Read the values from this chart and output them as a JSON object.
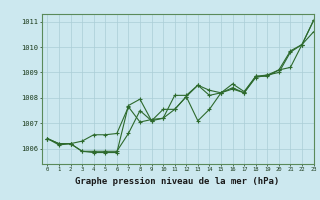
{
  "xlabel": "Graphe pression niveau de la mer (hPa)",
  "xlim": [
    -0.5,
    23
  ],
  "ylim": [
    1005.4,
    1011.3
  ],
  "yticks": [
    1006,
    1007,
    1008,
    1009,
    1010,
    1011
  ],
  "xticks": [
    0,
    1,
    2,
    3,
    4,
    5,
    6,
    7,
    8,
    9,
    10,
    11,
    12,
    13,
    14,
    15,
    16,
    17,
    18,
    19,
    20,
    21,
    22,
    23
  ],
  "background_color": "#cce8ef",
  "grid_color": "#aacdd6",
  "line_color": "#2d6a2d",
  "line1_x": [
    0,
    1,
    2,
    3,
    4,
    5,
    6,
    7,
    8,
    9,
    10,
    11,
    12,
    13,
    14,
    15,
    16,
    17,
    18,
    19,
    20,
    21,
    22,
    23
  ],
  "line1_y": [
    1006.4,
    1006.2,
    1006.2,
    1005.9,
    1005.9,
    1005.9,
    1005.9,
    1006.6,
    1007.5,
    1007.1,
    1007.2,
    1008.1,
    1008.1,
    1008.5,
    1008.1,
    1008.2,
    1008.4,
    1008.2,
    1008.8,
    1008.9,
    1009.0,
    1009.8,
    1010.1,
    1010.6
  ],
  "line2_x": [
    0,
    1,
    2,
    3,
    4,
    5,
    6,
    7,
    8,
    9,
    10,
    11,
    12,
    13,
    14,
    15,
    16,
    17,
    18,
    19,
    20,
    21,
    22,
    23
  ],
  "line2_y": [
    1006.4,
    1006.2,
    1006.2,
    1005.9,
    1005.85,
    1005.85,
    1005.85,
    1007.7,
    1007.95,
    1007.1,
    1007.55,
    1007.55,
    1008.05,
    1007.1,
    1007.55,
    1008.2,
    1008.35,
    1008.2,
    1008.85,
    1008.85,
    1009.1,
    1009.85,
    1010.1,
    1011.05
  ],
  "line3_x": [
    0,
    1,
    2,
    3,
    4,
    5,
    6,
    7,
    8,
    9,
    10,
    11,
    12,
    13,
    14,
    15,
    16,
    17,
    18,
    19,
    20,
    21,
    22,
    23
  ],
  "line3_y": [
    1006.4,
    1006.15,
    1006.2,
    1006.3,
    1006.55,
    1006.55,
    1006.6,
    1007.65,
    1007.05,
    1007.15,
    1007.2,
    1007.55,
    1008.05,
    1008.5,
    1008.3,
    1008.2,
    1008.55,
    1008.25,
    1008.85,
    1008.9,
    1009.1,
    1009.2,
    1010.1,
    1011.05
  ]
}
